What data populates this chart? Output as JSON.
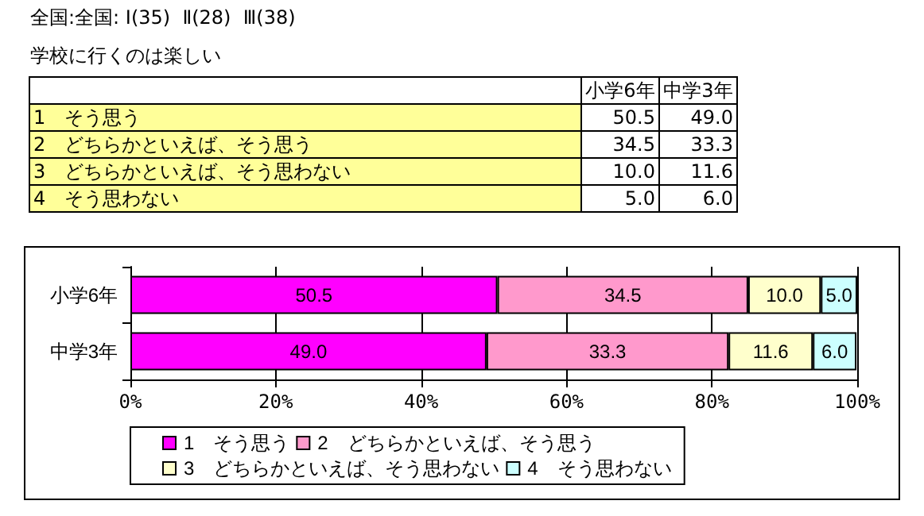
{
  "chart_data": {
    "type": "bar",
    "orientation": "horizontal",
    "stacked": true,
    "title": "全国:全国: Ⅰ(35)  Ⅱ(28)  Ⅲ(38)",
    "subtitle": "学校に行くのは楽しい",
    "categories": [
      "小学6年",
      "中学3年"
    ],
    "series": [
      {
        "name": "1　そう思う",
        "color": "#ff00ff",
        "values": [
          50.5,
          49.0
        ],
        "value_labels": [
          "50.5",
          "49.0"
        ]
      },
      {
        "name": "2　どちらかといえば、そう思う",
        "color": "#ff99cc",
        "values": [
          34.5,
          33.3
        ],
        "value_labels": [
          "34.5",
          "33.3"
        ]
      },
      {
        "name": "3　どちらかといえば、そう思わない",
        "color": "#ffffcc",
        "values": [
          10.0,
          11.6
        ],
        "value_labels": [
          "10.0",
          "11.6"
        ]
      },
      {
        "name": "4　そう思わない",
        "color": "#ccffff",
        "values": [
          5.0,
          6.0
        ],
        "value_labels": [
          "5.0",
          "6.0"
        ]
      }
    ],
    "xlim": [
      0,
      100
    ],
    "xticks": [
      {
        "value": 0,
        "label": "0%"
      },
      {
        "value": 20,
        "label": "20%"
      },
      {
        "value": 40,
        "label": "40%"
      },
      {
        "value": 60,
        "label": "60%"
      },
      {
        "value": 80,
        "label": "80%"
      },
      {
        "value": 100,
        "label": "100%"
      }
    ],
    "grid": "x",
    "legend": "bottom"
  }
}
